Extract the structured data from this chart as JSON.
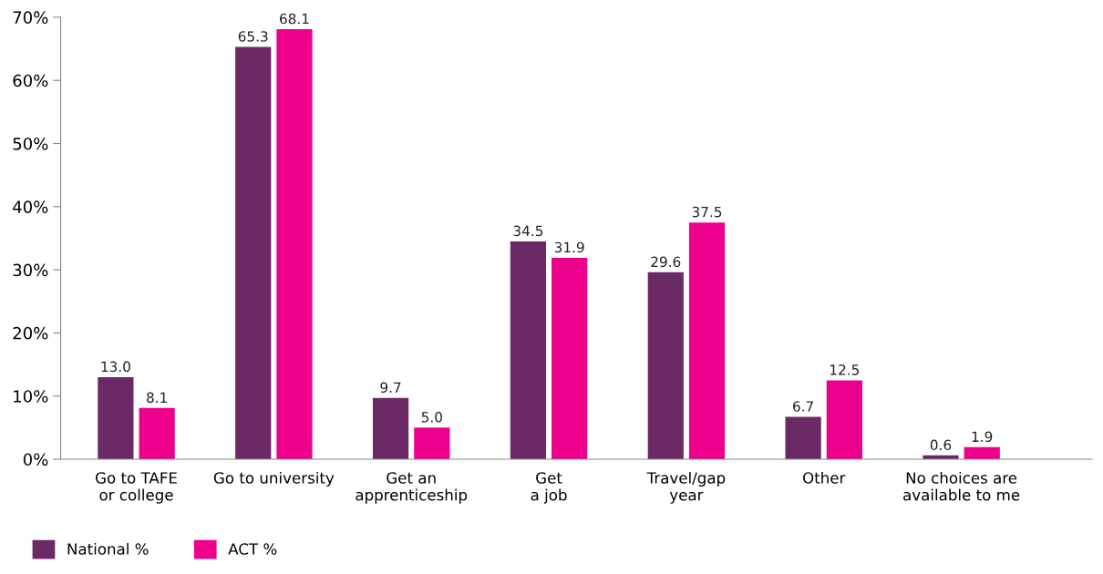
{
  "chart_data": {
    "type": "bar",
    "categories": [
      "Go to TAFE\nor college",
      "Go to university",
      "Get an\napprenticeship",
      "Get\na job",
      "Travel/gap\nyear",
      "Other",
      "No choices are\navailable to me"
    ],
    "series": [
      {
        "name": "National %",
        "color": "#6b2a66",
        "values": [
          13.0,
          65.3,
          9.7,
          34.5,
          29.6,
          6.7,
          0.6
        ],
        "value_labels": [
          "13.0",
          "65.3",
          "9.7",
          "34.5",
          "29.6",
          "6.7",
          "0.6"
        ]
      },
      {
        "name": "ACT %",
        "color": "#ec008c",
        "values": [
          8.1,
          68.1,
          5.0,
          31.9,
          37.5,
          12.5,
          1.9
        ],
        "value_labels": [
          "8.1",
          "68.1",
          "5.0",
          "31.9",
          "37.5",
          "12.5",
          "1.9"
        ]
      }
    ],
    "ylim": [
      0,
      70
    ],
    "yticks": [
      {
        "value": 0,
        "label": "0%"
      },
      {
        "value": 10,
        "label": "10%"
      },
      {
        "value": 20,
        "label": "20%"
      },
      {
        "value": 30,
        "label": "30%"
      },
      {
        "value": 40,
        "label": "40%"
      },
      {
        "value": 50,
        "label": "50%"
      },
      {
        "value": 60,
        "label": "60%"
      },
      {
        "value": 70,
        "label": "70%"
      }
    ],
    "grid": false,
    "legend": "bottom left"
  }
}
